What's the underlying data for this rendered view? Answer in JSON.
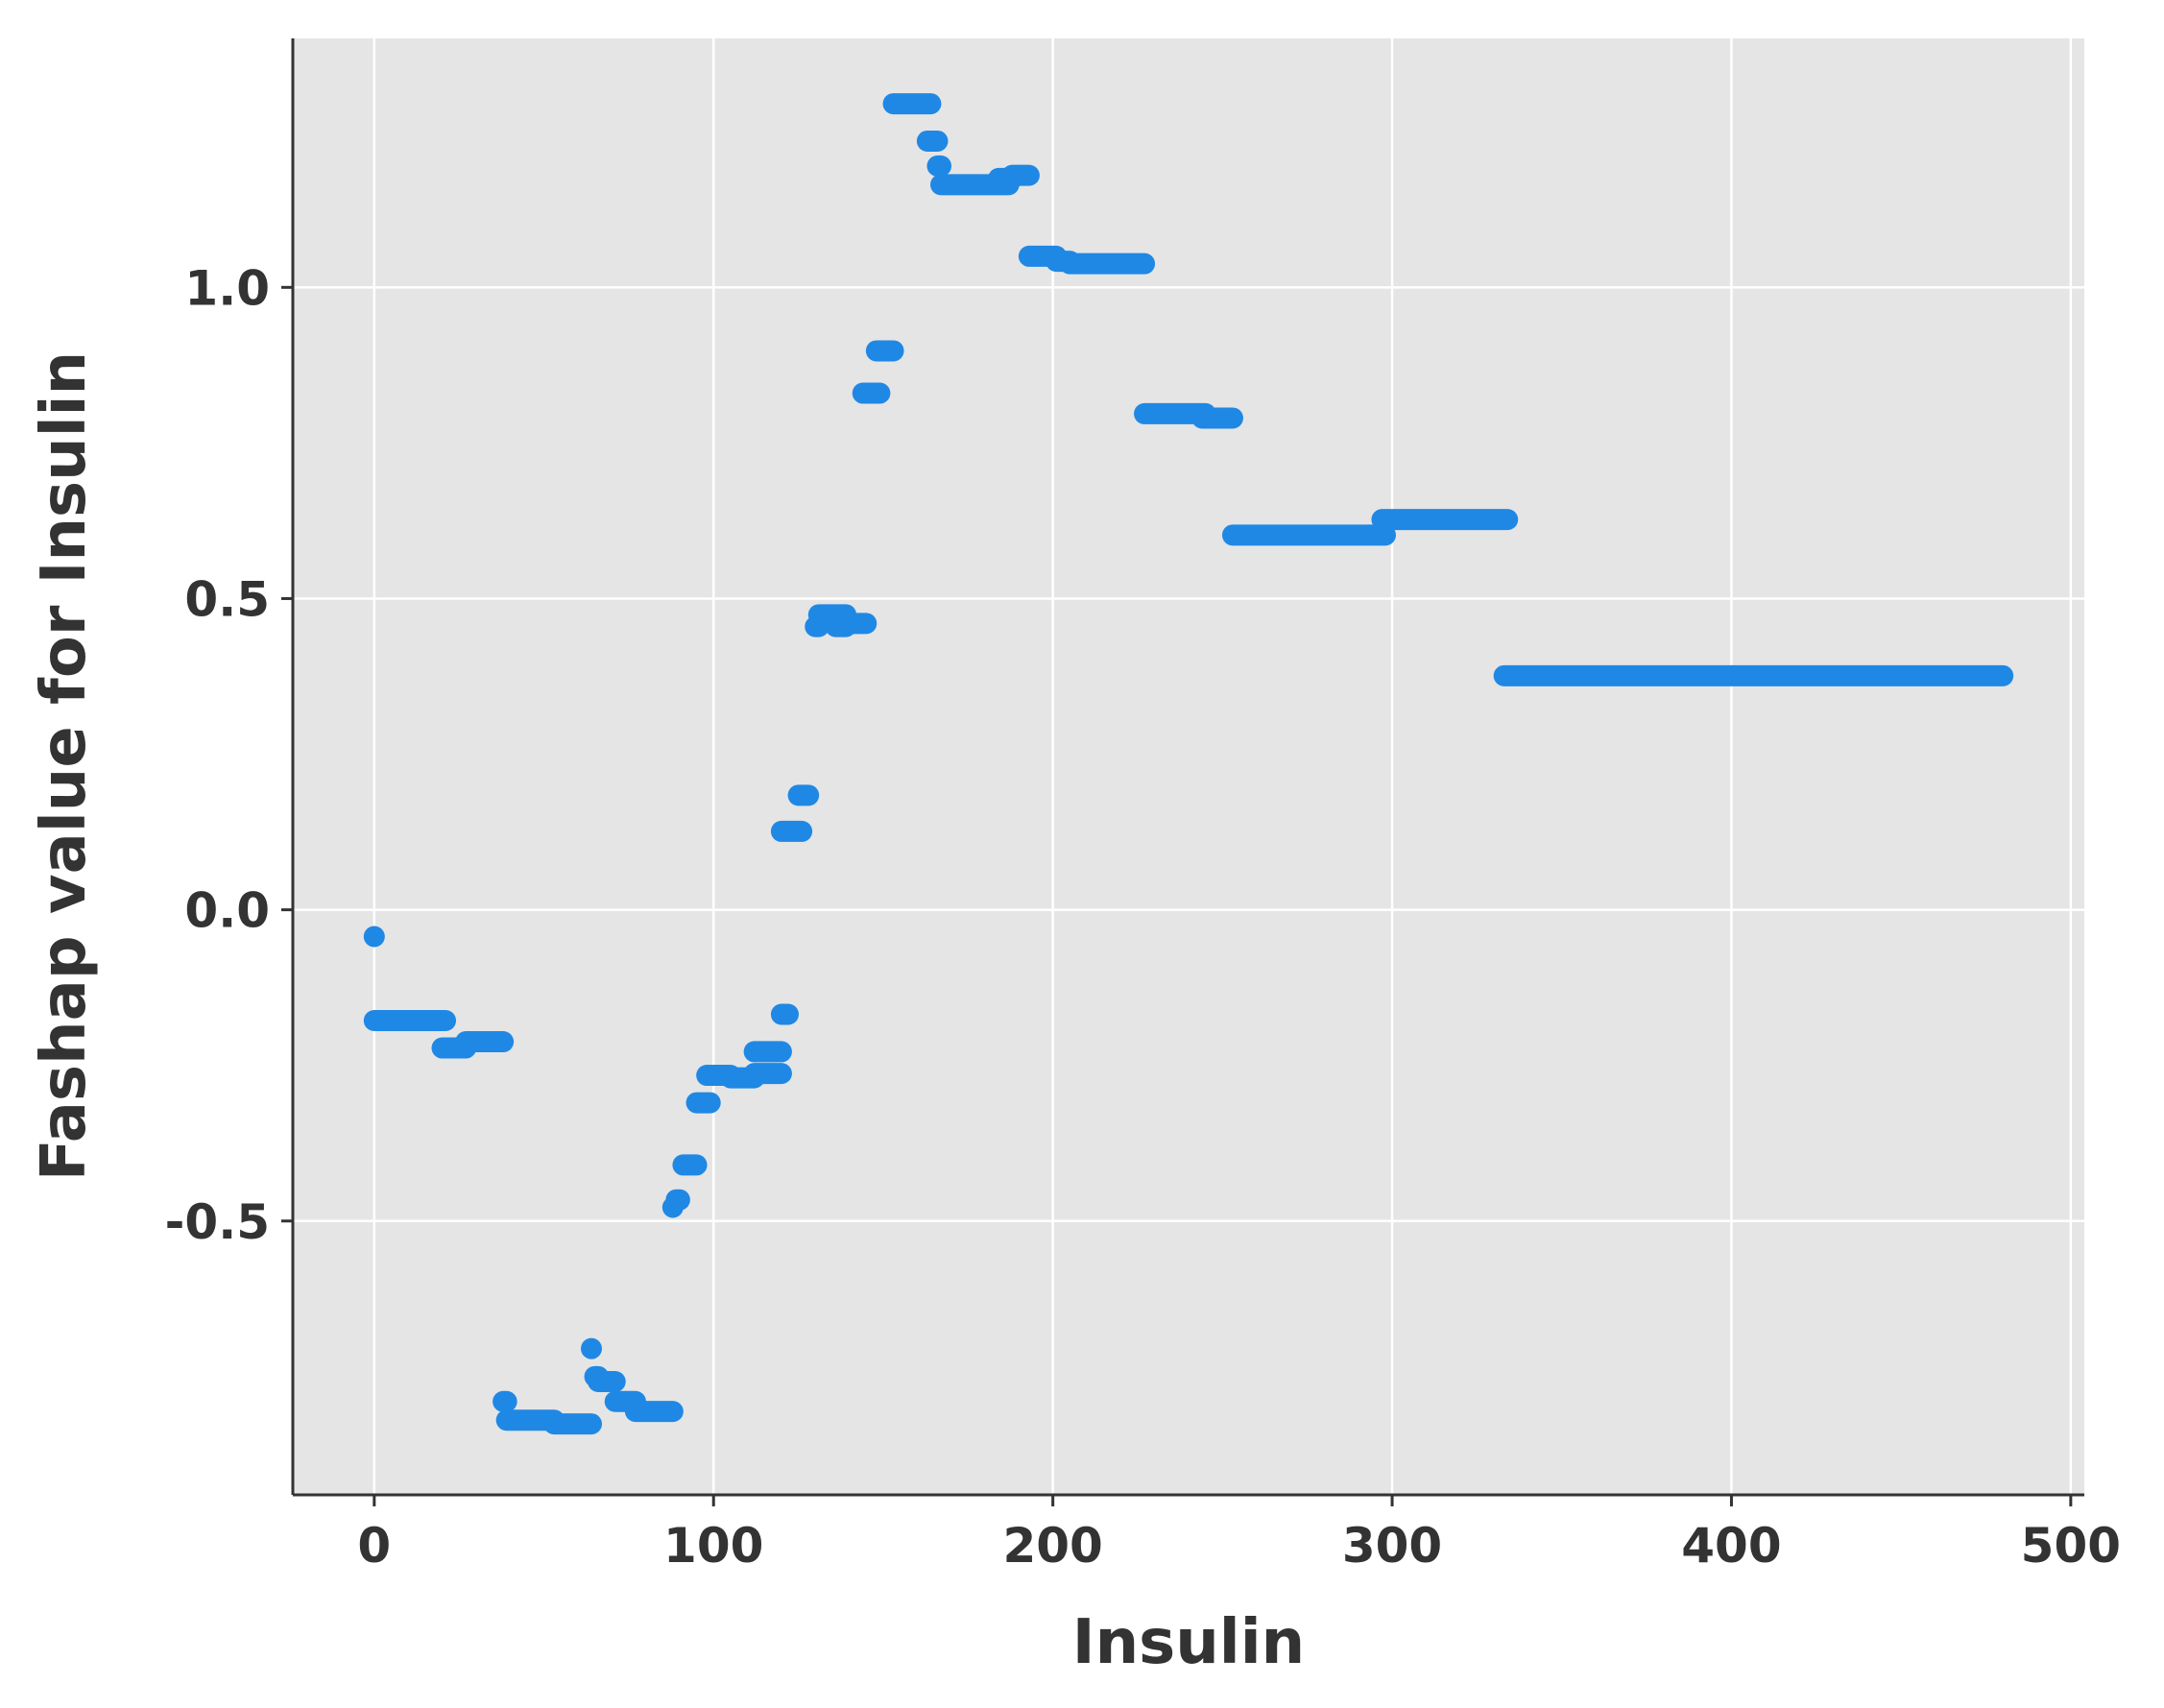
{
  "chart_data": {
    "type": "scatter",
    "title": "",
    "xlabel": "Insulin",
    "ylabel": "Fashap value for Insulin",
    "xlim": [
      -24,
      504
    ],
    "ylim": [
      -0.94,
      1.4
    ],
    "grid": true,
    "xticks": [
      0,
      100,
      200,
      300,
      400,
      500
    ],
    "yticks": [
      -0.5,
      0.0,
      0.5,
      1.0
    ],
    "xtick_labels": [
      "0",
      "100",
      "200",
      "300",
      "400",
      "500"
    ],
    "ytick_labels": [
      "-0.5",
      "0.0",
      "0.5",
      "1.0"
    ],
    "colors": {
      "points": "#1f88e5",
      "plot_background": "#e5e5e5",
      "grid": "#ffffff",
      "axis": "#333333",
      "text": "#333333"
    },
    "series": [
      {
        "name": "Insulin",
        "segments": [
          {
            "x": [
              0,
              0
            ],
            "y": -0.043
          },
          {
            "x": [
              0,
              21
            ],
            "y": -0.178
          },
          {
            "x": [
              20,
              27
            ],
            "y": -0.222
          },
          {
            "x": [
              27,
              38
            ],
            "y": -0.212
          },
          {
            "x": [
              38,
              39
            ],
            "y": -0.79
          },
          {
            "x": [
              39,
              53
            ],
            "y": -0.82
          },
          {
            "x": [
              53,
              64
            ],
            "y": -0.826
          },
          {
            "x": [
              64,
              64
            ],
            "y": -0.705
          },
          {
            "x": [
              65,
              66
            ],
            "y": -0.75
          },
          {
            "x": [
              66,
              71
            ],
            "y": -0.758
          },
          {
            "x": [
              71,
              77
            ],
            "y": -0.79
          },
          {
            "x": [
              77,
              88
            ],
            "y": -0.806
          },
          {
            "x": [
              88,
              88
            ],
            "y": -0.478
          },
          {
            "x": [
              89,
              90
            ],
            "y": -0.466
          },
          {
            "x": [
              91,
              95
            ],
            "y": -0.41
          },
          {
            "x": [
              95,
              99
            ],
            "y": -0.31
          },
          {
            "x": [
              98,
              105
            ],
            "y": -0.266
          },
          {
            "x": [
              105,
              112
            ],
            "y": -0.27
          },
          {
            "x": [
              112,
              120
            ],
            "y": -0.263
          },
          {
            "x": [
              112,
              120
            ],
            "y": -0.228
          },
          {
            "x": [
              120,
              122
            ],
            "y": -0.168
          },
          {
            "x": [
              120,
              126
            ],
            "y": 0.126
          },
          {
            "x": [
              125,
              128
            ],
            "y": 0.184
          },
          {
            "x": [
              130,
              131
            ],
            "y": 0.455
          },
          {
            "x": [
              131,
              139
            ],
            "y": 0.474
          },
          {
            "x": [
              136,
              139
            ],
            "y": 0.455
          },
          {
            "x": [
              139,
              145
            ],
            "y": 0.46
          },
          {
            "x": [
              144,
              149
            ],
            "y": 0.83
          },
          {
            "x": [
              148,
              153
            ],
            "y": 0.898
          },
          {
            "x": [
              153,
              164
            ],
            "y": 1.295
          },
          {
            "x": [
              163,
              166
            ],
            "y": 1.235
          },
          {
            "x": [
              166,
              167
            ],
            "y": 1.195
          },
          {
            "x": [
              167,
              187
            ],
            "y": 1.165
          },
          {
            "x": [
              184,
              188
            ],
            "y": 1.175
          },
          {
            "x": [
              188,
              193
            ],
            "y": 1.18
          },
          {
            "x": [
              193,
              201
            ],
            "y": 1.05
          },
          {
            "x": [
              201,
              205
            ],
            "y": 1.042
          },
          {
            "x": [
              205,
              227
            ],
            "y": 1.038
          },
          {
            "x": [
              227,
              245
            ],
            "y": 0.797
          },
          {
            "x": [
              244,
              253
            ],
            "y": 0.79
          },
          {
            "x": [
              253,
              298
            ],
            "y": 0.602
          },
          {
            "x": [
              297,
              334
            ],
            "y": 0.627
          },
          {
            "x": [
              333,
              480
            ],
            "y": 0.376
          }
        ]
      }
    ]
  }
}
